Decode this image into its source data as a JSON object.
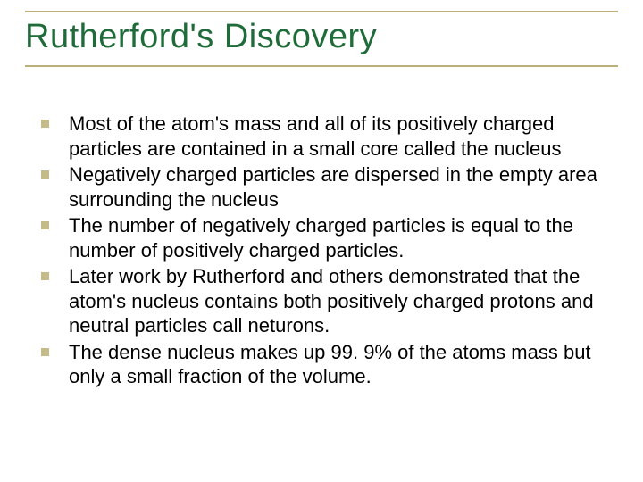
{
  "slide": {
    "title": "Rutherford's Discovery",
    "title_color": "#1f6b3a",
    "rule_color": "#b9b07a",
    "bullet_color": "#c4bb88",
    "text_color": "#000000",
    "background": "#ffffff",
    "title_fontsize": 38,
    "body_fontsize": 22,
    "bullets": [
      "Most of the atom's mass and all of its positively charged particles are contained in a small core called the nucleus",
      "Negatively charged particles  are dispersed in the empty area surrounding the nucleus",
      "The number of negatively charged particles is equal to the number of positively charged particles.",
      "Later work by Rutherford and others demonstrated that the atom's nucleus contains both positively charged protons and neutral particles call neturons.",
      "The dense nucleus makes up 99. 9% of the atoms mass but only a small fraction of the volume."
    ]
  }
}
